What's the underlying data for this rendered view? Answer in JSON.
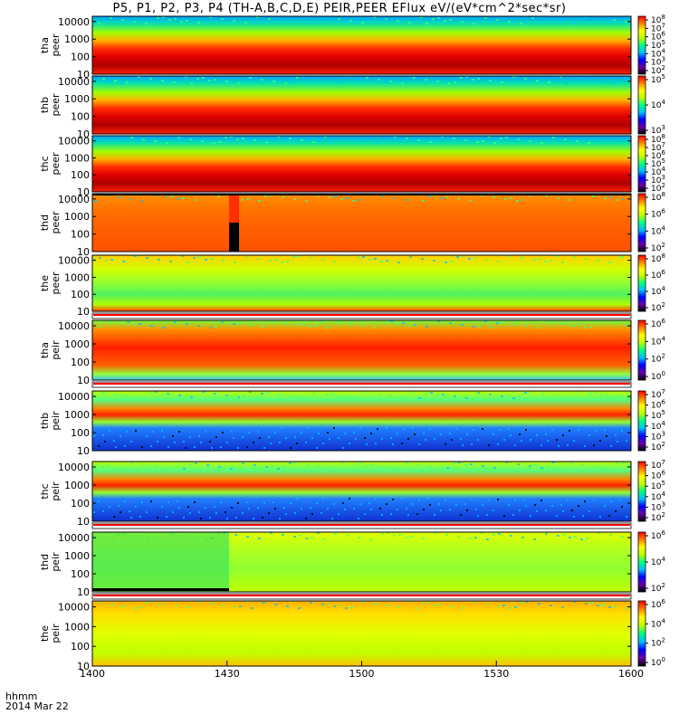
{
  "title": "P5, P1, P2, P3, P4 (TH-A,B,C,D,E) PEIR,PEER EFlux eV/(eV*cm^2*sec*sr)",
  "footer": {
    "line1": "hhmm",
    "line2": "2014 Mar 22"
  },
  "chart_data": {
    "type": "heatmap",
    "x": {
      "ticks": [
        "1400",
        "1430",
        "1500",
        "1530",
        "1600"
      ],
      "range": [
        "14:00",
        "16:00"
      ]
    },
    "y": {
      "scale": "log",
      "range": [
        10,
        20000
      ],
      "ticks": [
        "10",
        "100",
        "1000",
        "10000"
      ]
    },
    "panels": [
      {
        "ylabel": [
          "tha",
          "peer"
        ],
        "cbar_labels": [
          "10^2",
          "10^3",
          "10^4",
          "10^5",
          "10^6",
          "10^7",
          "10^8"
        ],
        "pattern": "eband_dark"
      },
      {
        "ylabel": [
          "thb",
          "peer"
        ],
        "cbar_labels": [
          "10^3",
          "10^4",
          "10^5"
        ],
        "pattern": "eband_dark"
      },
      {
        "ylabel": [
          "thc",
          "peer"
        ],
        "cbar_labels": [
          "10^2",
          "10^3",
          "10^4",
          "10^5",
          "10^6",
          "10^7",
          "10^8"
        ],
        "pattern": "eband_dark"
      },
      {
        "ylabel": [
          "thd",
          "peer"
        ],
        "cbar_labels": [
          "10^2",
          "10^4",
          "10^6",
          "10^8"
        ],
        "pattern": "orange_gap"
      },
      {
        "ylabel": [
          "the",
          "peer"
        ],
        "cbar_labels": [
          "10^2",
          "10^4",
          "10^6",
          "10^8"
        ],
        "pattern": "yellow_green"
      },
      {
        "ylabel": [
          "tha",
          "peir"
        ],
        "cbar_labels": [
          "10^0",
          "10^2",
          "10^4",
          "10^6"
        ],
        "pattern": "ion_red"
      },
      {
        "ylabel": [
          "thb",
          "peir"
        ],
        "cbar_labels": [
          "10^2",
          "10^3",
          "10^4",
          "10^5",
          "10^6",
          "10^7"
        ],
        "pattern": "ion_band"
      },
      {
        "ylabel": [
          "thc",
          "peir"
        ],
        "cbar_labels": [
          "10^2",
          "10^3",
          "10^4",
          "10^5",
          "10^6",
          "10^7"
        ],
        "pattern": "ion_band"
      },
      {
        "ylabel": [
          "thd",
          "peir"
        ],
        "cbar_labels": [
          "10^2",
          "10^4",
          "10^6"
        ],
        "pattern": "ion_green"
      },
      {
        "ylabel": [
          "the",
          "peir"
        ],
        "cbar_labels": [
          "10^0",
          "10^2",
          "10^4",
          "10^6"
        ],
        "pattern": "ion_yellow"
      }
    ]
  }
}
